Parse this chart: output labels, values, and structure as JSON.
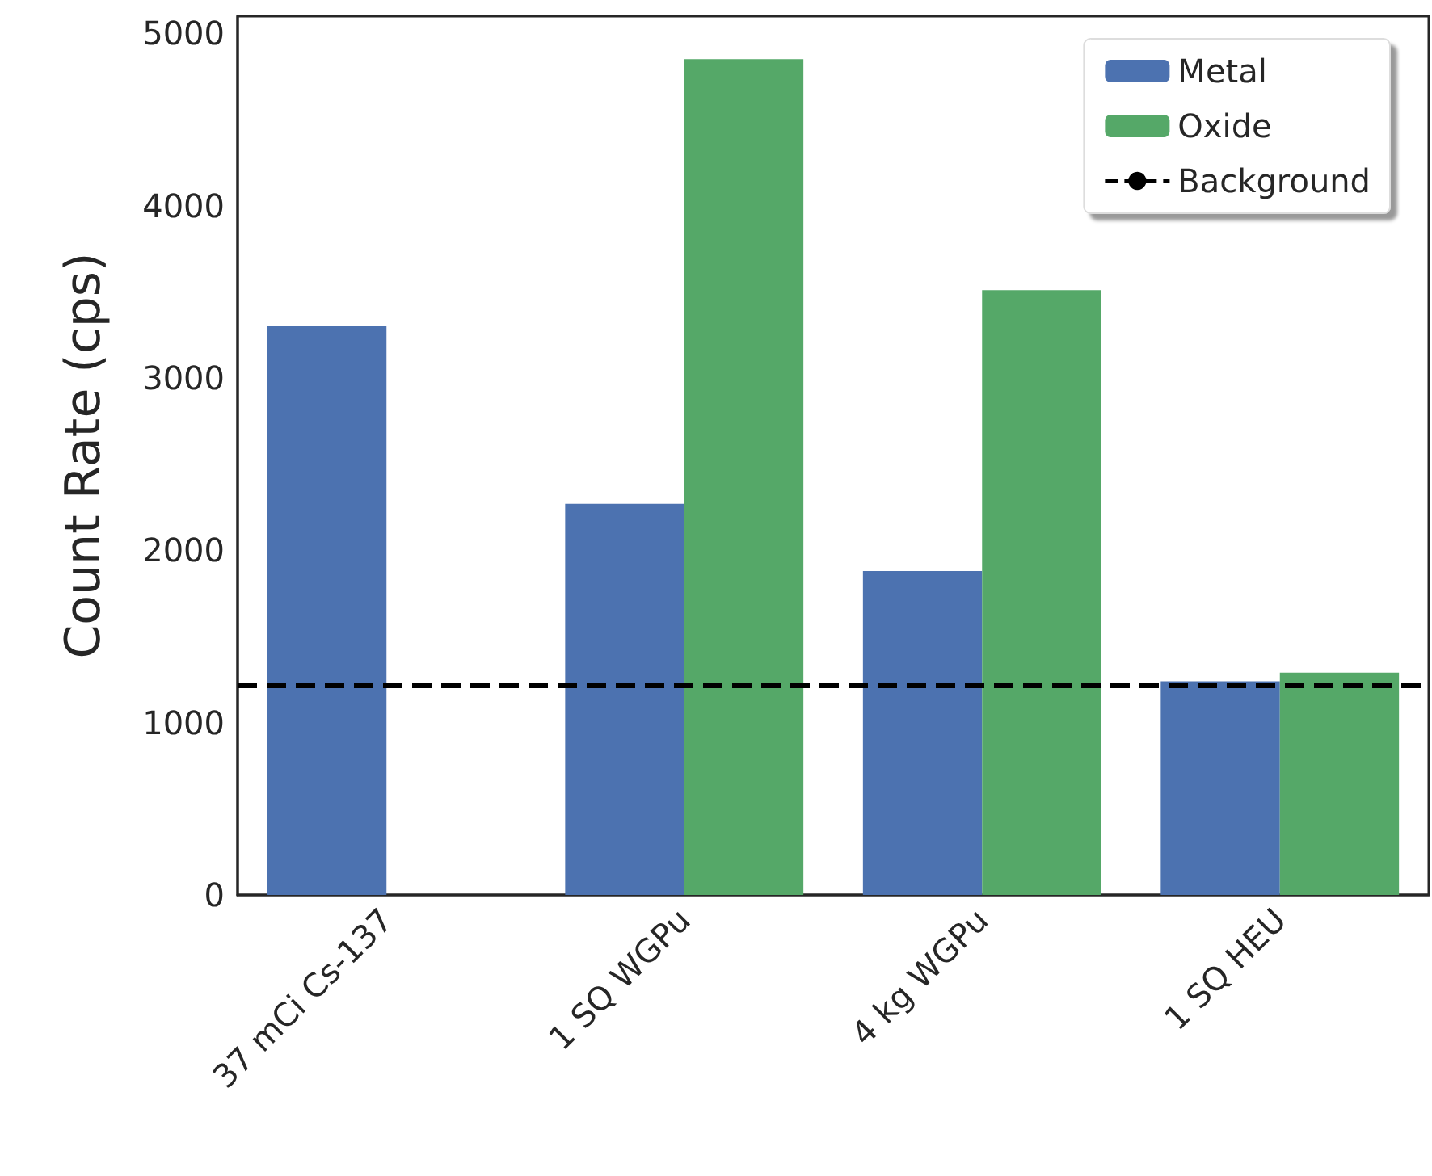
{
  "chart_data": {
    "type": "bar",
    "ylabel": "Count Rate (cps)",
    "categories": [
      "37 mCi Cs-137",
      "1 SQ WGPu",
      "4 kg WGPu",
      "1 SQ HEU"
    ],
    "series": [
      {
        "name": "Metal",
        "color": "#4c72b0",
        "values": [
          3300,
          2270,
          1880,
          1240
        ]
      },
      {
        "name": "Oxide",
        "color": "#55a868",
        "values": [
          null,
          4850,
          3510,
          1290
        ]
      }
    ],
    "ylim": [
      0,
      5100
    ],
    "yticks": [
      0,
      1000,
      2000,
      3000,
      4000,
      5000
    ],
    "ref_lines": [
      {
        "axis": "y",
        "value": 1220,
        "label": "Background",
        "color": "#000000",
        "line_style": "dashed"
      }
    ],
    "grid": false,
    "legend": "top right"
  }
}
